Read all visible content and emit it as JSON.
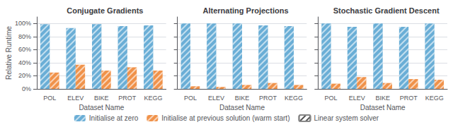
{
  "chart_data": [
    {
      "type": "bar",
      "title": "Conjugate Gradients",
      "xlabel": "Dataset Name",
      "ylabel": "Relative Runtime",
      "categories": [
        "POL",
        "ELEV",
        "BIKE",
        "PROT",
        "KEGG"
      ],
      "series": [
        {
          "name": "Initialise at zero",
          "color": "#6aaed6",
          "marker": "hatch",
          "values": [
            99,
            93,
            99,
            96,
            97
          ]
        },
        {
          "name": "Initialise at previous solution (warm start)",
          "color": "#f0924a",
          "marker": "hatch",
          "values": [
            25,
            37,
            28,
            33,
            28
          ]
        },
        {
          "name": "Linear system solver",
          "color": "#ffffff",
          "marker": "hatch",
          "values": [
            null,
            null,
            null,
            null,
            null
          ]
        }
      ],
      "ylim": [
        0,
        110
      ],
      "yticks": [
        {
          "value": 0,
          "label": "0%"
        },
        {
          "value": 20,
          "label": "20%"
        },
        {
          "value": 40,
          "label": "40%"
        },
        {
          "value": 60,
          "label": "60%"
        },
        {
          "value": 80,
          "label": "80%"
        },
        {
          "value": 100,
          "label": "100%"
        }
      ],
      "grid": true,
      "legend": "bottom"
    },
    {
      "type": "bar",
      "title": "Alternating Projections",
      "xlabel": "Dataset Name",
      "categories": [
        "POL",
        "ELEV",
        "BIKE",
        "PROT",
        "KEGG"
      ],
      "series": [
        {
          "name": "Initialise at zero",
          "color": "#6aaed6",
          "marker": "hatch",
          "values": [
            100,
            100,
            100,
            97,
            96
          ]
        },
        {
          "name": "Initialise at previous solution (warm start)",
          "color": "#f0924a",
          "marker": "hatch",
          "values": [
            4,
            3,
            6,
            9,
            6
          ]
        },
        {
          "name": "Linear system solver",
          "color": "#ffffff",
          "marker": "hatch",
          "values": [
            null,
            null,
            null,
            null,
            null
          ]
        }
      ],
      "ylim": [
        0,
        110
      ],
      "yticks": [
        0,
        20,
        40,
        60,
        80,
        100
      ],
      "grid": true,
      "tick_labels": "x"
    },
    {
      "type": "bar",
      "title": "Stochastic Gradient Descent",
      "xlabel": "Dataset Name",
      "categories": [
        "POL",
        "ELEV",
        "BIKE",
        "PROT",
        "KEGG"
      ],
      "series": [
        {
          "name": "Initialise at zero",
          "color": "#6aaed6",
          "marker": "hatch",
          "values": [
            100,
            95,
            100,
            95,
            100
          ]
        },
        {
          "name": "Initialise at previous solution (warm start)",
          "color": "#f0924a",
          "marker": "hatch",
          "values": [
            8,
            18,
            9,
            15,
            14
          ]
        },
        {
          "name": "Linear system solver",
          "color": "#ffffff",
          "marker": "hatch",
          "values": [
            null,
            null,
            null,
            null,
            null
          ]
        }
      ],
      "ylim": [
        0,
        110
      ],
      "yticks": [
        0,
        20,
        40,
        60,
        80,
        100
      ],
      "grid": true,
      "tick_labels": "x"
    }
  ]
}
